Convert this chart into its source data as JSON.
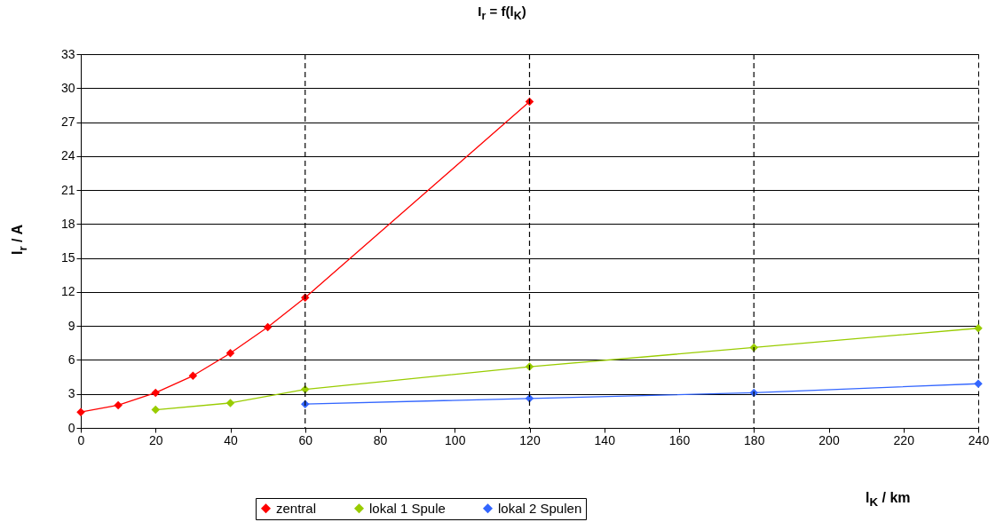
{
  "chart_data": {
    "type": "line",
    "title": "I$_{r}$ = f(l$_{K}$)",
    "xlabel": "l$_{K}$ / km",
    "ylabel": "I$_{r}$ / A",
    "xlim": [
      0,
      240
    ],
    "xticks": [
      0,
      20,
      40,
      60,
      80,
      100,
      120,
      140,
      160,
      180,
      200,
      220,
      240
    ],
    "ylim": [
      0,
      33
    ],
    "yticks": [
      0,
      3,
      6,
      9,
      12,
      15,
      18,
      21,
      24,
      27,
      30,
      33
    ],
    "grid": "y",
    "legend": "bottom",
    "marker": "diamond",
    "line_style": "solid",
    "ref_lines": [
      {
        "axis": "x",
        "value": 60,
        "color": "#000000",
        "line_style": "dashed"
      },
      {
        "axis": "x",
        "value": 120,
        "color": "#000000",
        "line_style": "dashed"
      },
      {
        "axis": "x",
        "value": 180,
        "color": "#000000",
        "line_style": "dashed"
      }
    ],
    "series": [
      {
        "name": "zentral",
        "color": "#ff0000",
        "x": [
          0,
          10,
          20,
          30,
          40,
          50,
          60,
          120
        ],
        "values": [
          1.4,
          2.0,
          3.1,
          4.6,
          6.6,
          8.9,
          11.5,
          28.8
        ]
      },
      {
        "name": "lokal 1 Spule",
        "color": "#99cc00",
        "x": [
          20,
          40,
          60,
          120,
          180,
          240
        ],
        "values": [
          1.6,
          2.2,
          3.4,
          5.4,
          7.1,
          8.8
        ]
      },
      {
        "name": "lokal 2 Spulen",
        "color": "#3366ff",
        "x": [
          60,
          120,
          180,
          240
        ],
        "values": [
          2.1,
          2.6,
          3.1,
          3.9
        ]
      }
    ]
  }
}
